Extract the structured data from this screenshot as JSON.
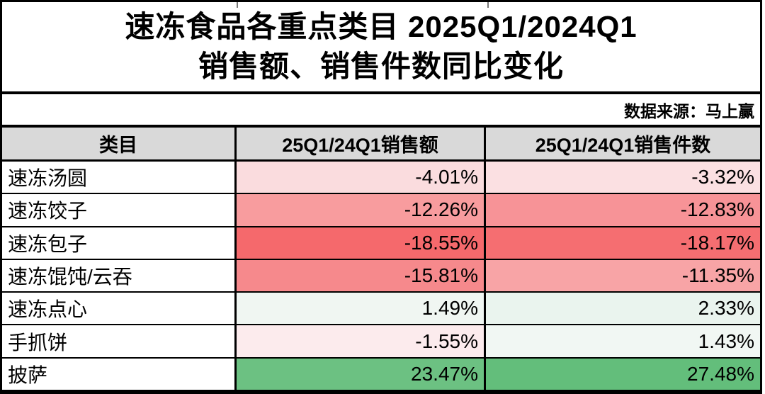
{
  "header": {
    "title_line1": "速冻食品各重点类目 2025Q1/2024Q1",
    "title_line2": "销售额、销售件数同比变化",
    "source": "数据来源：马上赢"
  },
  "table": {
    "header_bg": "#D9D9D9",
    "columns": [
      "类目",
      "25Q1/24Q1销售额",
      "25Q1/24Q1销售件数"
    ],
    "rows": [
      {
        "category": "速冻汤圆",
        "sales": "-4.01%",
        "units": "-3.32%",
        "sales_bg": "#FADCDE",
        "units_bg": "#FBE0E2"
      },
      {
        "category": "速冻饺子",
        "sales": "-12.26%",
        "units": "-12.83%",
        "sales_bg": "#F89C9E",
        "units_bg": "#F79397"
      },
      {
        "category": "速冻包子",
        "sales": "-18.55%",
        "units": "-18.17%",
        "sales_bg": "#F5696C",
        "units_bg": "#F56E71"
      },
      {
        "category": "速冻馄饨/云吞",
        "sales": "-15.81%",
        "units": "-11.35%",
        "sales_bg": "#F6898C",
        "units_bg": "#F8A4A6"
      },
      {
        "category": "速冻点心",
        "sales": "1.49%",
        "units": "2.33%",
        "sales_bg": "#F0F6F2",
        "units_bg": "#EAF4EE"
      },
      {
        "category": "手抓饼",
        "sales": "-1.55%",
        "units": "1.43%",
        "sales_bg": "#FCEBED",
        "units_bg": "#F1F7F3"
      },
      {
        "category": "披萨",
        "sales": "23.47%",
        "units": "27.48%",
        "sales_bg": "#6CC182",
        "units_bg": "#63BE7B"
      }
    ]
  },
  "chart_data": {
    "type": "table",
    "title": "速冻食品各重点类目 2025Q1/2024Q1 销售额、销售件数同比变化",
    "source": "数据来源：马上赢",
    "categories": [
      "速冻汤圆",
      "速冻饺子",
      "速冻包子",
      "速冻馄饨/云吞",
      "速冻点心",
      "手抓饼",
      "披萨"
    ],
    "series": [
      {
        "name": "25Q1/24Q1销售额",
        "unit": "%",
        "values": [
          -4.01,
          -12.26,
          -18.55,
          -15.81,
          1.49,
          -1.55,
          23.47
        ]
      },
      {
        "name": "25Q1/24Q1销售件数",
        "unit": "%",
        "values": [
          -3.32,
          -12.83,
          -18.17,
          -11.35,
          2.33,
          1.43,
          27.48
        ]
      }
    ],
    "color_scale": {
      "style": "3-color scale by cell value",
      "min_color": "#F8696B",
      "mid_color": "#FCFCFF",
      "max_color": "#63BE7B"
    }
  }
}
